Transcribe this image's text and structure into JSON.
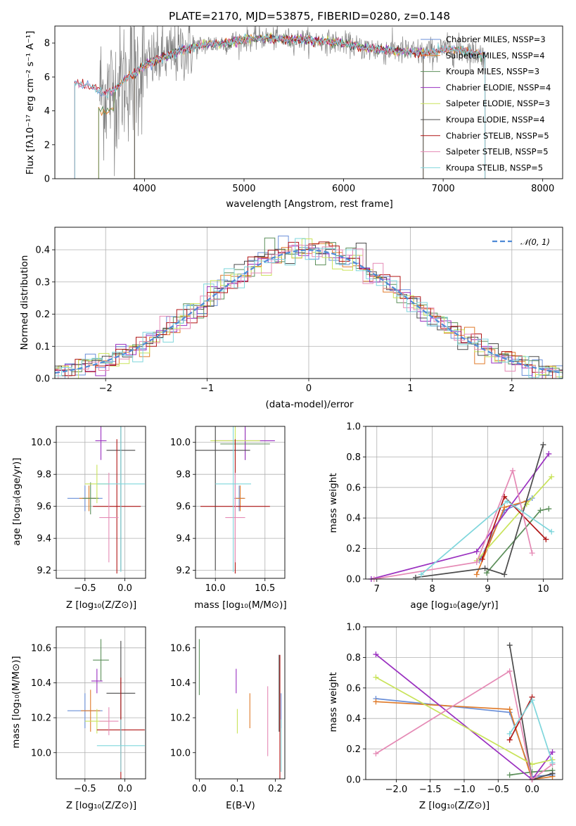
{
  "colors": {
    "palette": [
      "#6a8fd8",
      "#e07b2a",
      "#5c8f5a",
      "#9a30c0",
      "#c9e35a",
      "#4b4b4b",
      "#b01515",
      "#e58ab5",
      "#7fd6dc"
    ],
    "noise": "#808080",
    "gaussian": "#4f8ad6",
    "grid": "#b0b0b0"
  },
  "chart_data": [
    {
      "id": "spectrum",
      "type": "line",
      "title": "PLATE=2170, MJD=53875, FIBERID=0280, z=0.148",
      "xlabel": "wavelength [Angstrom, rest frame]",
      "ylabel": "Flux [fλ10⁻¹⁷ erg cm⁻² s⁻¹ A⁻¹]",
      "xlim": [
        3100,
        8200
      ],
      "ylim": [
        0,
        9
      ],
      "xticks": [
        "4000",
        "5000",
        "6000",
        "7000",
        "8000"
      ],
      "yticks": [
        "0",
        "2",
        "4",
        "6",
        "8"
      ],
      "grid": false,
      "legend_position": "top-right",
      "series": [
        {
          "name": "Chabrier MILES, N_SSP=3"
        },
        {
          "name": "Salpeter MILES, N_SSP=4"
        },
        {
          "name": "Kroupa MILES, N_SSP=3"
        },
        {
          "name": "Chabrier ELODIE, N_SSP=4"
        },
        {
          "name": "Salpeter ELODIE, N_SSP=3"
        },
        {
          "name": "Kroupa ELODIE, N_SSP=4"
        },
        {
          "name": "Chabrier STELIB, N_SSP=5"
        },
        {
          "name": "Salpeter STELIB, N_SSP=5"
        },
        {
          "name": "Kroupa STELIB, N_SSP=5"
        }
      ],
      "continuum_x": [
        3300,
        3450,
        3600,
        3700,
        3800,
        3900,
        4000,
        4200,
        4400,
        4600,
        4800,
        5000,
        5200,
        5400,
        5600,
        5800,
        6000,
        6200,
        6400,
        6600,
        6800,
        7000,
        7200,
        7400
      ],
      "continuum_y": [
        5.6,
        5.5,
        5.0,
        5.2,
        5.9,
        6.2,
        6.7,
        7.2,
        7.6,
        7.9,
        8.0,
        8.2,
        8.3,
        8.2,
        8.2,
        8.1,
        8.0,
        7.7,
        7.6,
        7.5,
        7.4,
        7.6,
        7.6,
        7.3
      ]
    },
    {
      "id": "residual-histogram",
      "type": "histogram",
      "xlabel": "(data-model)/error",
      "ylabel": "Normed distribution",
      "xlim": [
        -2.5,
        2.5
      ],
      "ylim": [
        0,
        0.47
      ],
      "xticks": [
        "−2",
        "−1",
        "0",
        "1",
        "2"
      ],
      "yticks": [
        "0.0",
        "0.1",
        "0.2",
        "0.3",
        "0.4"
      ],
      "grid": true,
      "legend_position": "top-right",
      "legend": "𝒩(0, 1)"
    },
    {
      "id": "age-vs-z",
      "type": "scatter",
      "xlabel": "Z [log₁₀(Z/Z⊙)]",
      "ylabel": "age  [log₁₀(age/yr)]",
      "xlim": [
        -0.86,
        0.26
      ],
      "ylim": [
        9.15,
        10.1
      ],
      "xticks": [
        "−0.5",
        "0.0"
      ],
      "yticks": [
        "9.2",
        "9.4",
        "9.6",
        "9.8",
        "10.0"
      ],
      "grid": true,
      "points": [
        [
          -0.5,
          9.65
        ],
        [
          -0.45,
          9.65
        ],
        [
          -0.43,
          9.65
        ],
        [
          -0.3,
          10.01
        ],
        [
          -0.35,
          9.74
        ],
        [
          -0.05,
          9.95
        ],
        [
          -0.1,
          9.6
        ],
        [
          -0.2,
          9.53
        ],
        [
          -0.05,
          9.74
        ]
      ]
    },
    {
      "id": "age-vs-mass",
      "type": "scatter",
      "xlabel": "mass [log₁₀(M/M⊙)]",
      "ylabel": "",
      "xlim": [
        9.8,
        10.7
      ],
      "ylim": [
        9.15,
        10.1
      ],
      "xticks": [
        "10.0",
        "10.5"
      ],
      "yticks": [
        "9.2",
        "9.4",
        "9.6",
        "9.8",
        "10.0"
      ],
      "grid": true,
      "points": [
        [
          10.24,
          9.65
        ],
        [
          10.25,
          9.65
        ],
        [
          10.3,
          9.99
        ],
        [
          10.3,
          10.01
        ],
        [
          10.2,
          10.01
        ],
        [
          10.0,
          9.95
        ],
        [
          10.2,
          9.6
        ],
        [
          10.2,
          9.53
        ],
        [
          10.18,
          9.74
        ]
      ]
    },
    {
      "id": "weight-vs-age",
      "type": "line",
      "xlabel": "age  [log₁₀(age/yr)]",
      "ylabel": "mass weight",
      "xlim": [
        6.8,
        10.35
      ],
      "ylim": [
        0,
        1
      ],
      "xticks": [
        "7",
        "8",
        "9",
        "10"
      ],
      "yticks": [
        "0.0",
        "0.2",
        "0.4",
        "0.6",
        "0.8",
        "1.0"
      ],
      "grid": true,
      "series": [
        {
          "x": [
            8.85,
            9.3,
            9.8
          ],
          "y": [
            0.12,
            0.45,
            0.53
          ]
        },
        {
          "x": [
            8.8,
            9.3,
            9.7
          ],
          "y": [
            0.03,
            0.47,
            0.51
          ]
        },
        {
          "x": [
            8.98,
            9.95,
            10.1
          ],
          "y": [
            0.04,
            0.45,
            0.46
          ]
        },
        {
          "x": [
            6.9,
            8.8,
            10.1
          ],
          "y": [
            0.0,
            0.18,
            0.82
          ]
        },
        {
          "x": [
            8.8,
            9.7,
            10.15
          ],
          "y": [
            0.12,
            0.49,
            0.67
          ]
        },
        {
          "x": [
            7.7,
            8.95,
            9.3,
            10.0
          ],
          "y": [
            0.01,
            0.07,
            0.03,
            0.88
          ]
        },
        {
          "x": [
            8.9,
            9.3,
            10.05
          ],
          "y": [
            0.13,
            0.54,
            0.26
          ]
        },
        {
          "x": [
            6.95,
            8.8,
            9.45,
            9.8
          ],
          "y": [
            0.0,
            0.11,
            0.71,
            0.17
          ]
        },
        {
          "x": [
            7.8,
            9.35,
            10.15
          ],
          "y": [
            0.03,
            0.51,
            0.31
          ]
        }
      ]
    },
    {
      "id": "mass-vs-z",
      "type": "scatter",
      "xlabel": "Z [log₁₀(Z/Z⊙)]",
      "ylabel": "mass [log₁₀(M/M⊙)]",
      "xlim": [
        -0.86,
        0.26
      ],
      "ylim": [
        9.85,
        10.72
      ],
      "xticks": [
        "−0.5",
        "0.0"
      ],
      "yticks": [
        "10.0",
        "10.2",
        "10.4",
        "10.6"
      ],
      "grid": true,
      "points": [
        [
          -0.5,
          10.24
        ],
        [
          -0.43,
          10.24
        ],
        [
          -0.3,
          10.53
        ],
        [
          -0.35,
          10.41
        ],
        [
          -0.35,
          10.18
        ],
        [
          -0.05,
          10.34
        ],
        [
          -0.05,
          10.13
        ],
        [
          -0.2,
          10.18
        ],
        [
          -0.05,
          10.04
        ]
      ]
    },
    {
      "id": "mass-vs-ebv",
      "type": "scatter",
      "xlabel": "E(B-V)",
      "ylabel": "",
      "xlim": [
        -0.01,
        0.225
      ],
      "ylim": [
        9.85,
        10.72
      ],
      "xticks": [
        "0.0",
        "0.1",
        "0.2"
      ],
      "yticks": [
        "10.0",
        "10.2",
        "10.4",
        "10.6"
      ],
      "grid": false,
      "points": [
        [
          0.215,
          10.24
        ],
        [
          0.133,
          10.24
        ],
        [
          0.0,
          10.49
        ],
        [
          0.097,
          10.41
        ],
        [
          0.1,
          10.18
        ],
        [
          0.21,
          10.34
        ],
        [
          0.212,
          10.13
        ],
        [
          0.18,
          10.18
        ],
        [
          0.215,
          10.04
        ]
      ]
    },
    {
      "id": "weight-vs-z",
      "type": "line",
      "xlabel": "Z [log₁₀(Z/Z⊙)]",
      "ylabel": "mass weight",
      "xlim": [
        -2.45,
        0.45
      ],
      "ylim": [
        0,
        1
      ],
      "xticks": [
        "−2.0",
        "−1.5",
        "−1.0",
        "−0.5",
        "0.0"
      ],
      "yticks": [
        "0.0",
        "0.2",
        "0.4",
        "0.6",
        "0.8",
        "1.0"
      ],
      "grid": true,
      "series": [
        {
          "x": [
            -2.3,
            -0.33,
            0.0,
            0.3
          ],
          "y": [
            0.53,
            0.44,
            0.02,
            0.03
          ]
        },
        {
          "x": [
            -2.3,
            -0.33,
            0.0,
            0.3
          ],
          "y": [
            0.51,
            0.46,
            0.0,
            0.02
          ]
        },
        {
          "x": [
            -0.33,
            0.0,
            0.3
          ],
          "y": [
            0.03,
            0.05,
            0.06
          ]
        },
        {
          "x": [
            -2.3,
            0.0,
            0.3
          ],
          "y": [
            0.82,
            0.0,
            0.18
          ]
        },
        {
          "x": [
            -2.3,
            0.0,
            0.3
          ],
          "y": [
            0.67,
            0.1,
            0.13
          ]
        },
        {
          "x": [
            -0.33,
            0.0,
            0.3
          ],
          "y": [
            0.88,
            0.0,
            0.04
          ]
        },
        {
          "x": [
            -0.33,
            0.0
          ],
          "y": [
            0.26,
            0.54
          ]
        },
        {
          "x": [
            -2.3,
            -0.33,
            0.0,
            0.3
          ],
          "y": [
            0.17,
            0.71,
            0.0,
            0.1
          ]
        },
        {
          "x": [
            -0.33,
            0.0,
            0.3
          ],
          "y": [
            0.3,
            0.52,
            0.11
          ]
        }
      ]
    }
  ]
}
